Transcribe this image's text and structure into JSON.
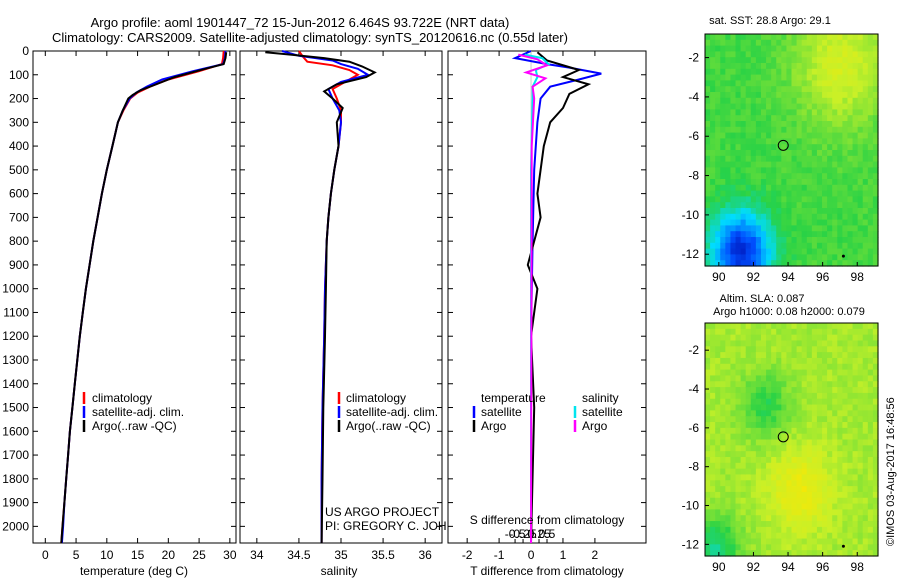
{
  "title_line1": "Argo profile: aoml 1901447_72 15-Jun-2012 6.464S 93.722E (NRT data)",
  "title_line2": "Climatology: CARS2009. Satellite-adjusted climatology: synTS_20120616.nc (0.55d later)",
  "side_stamp": "©IMOS 03-Aug-2017 16:48:56",
  "project_line1": "US ARGO PROJECT",
  "project_line2": "PI: GREGORY C. JOHNSON",
  "colors": {
    "climatology": "#ff0000",
    "satellite": "#0000ff",
    "argo": "#000000",
    "satellite_s": "#00e5ee",
    "argo_s": "#ff00ff"
  },
  "chart_data": [
    {
      "id": "temperature",
      "type": "line",
      "xlabel": "temperature (deg C)",
      "ylabel": "",
      "xlim": [
        -2,
        31
      ],
      "ylim": [
        2070,
        0
      ],
      "xticks": [
        0,
        5,
        10,
        15,
        20,
        25,
        30
      ],
      "yticks": [
        0,
        100,
        200,
        300,
        400,
        500,
        600,
        700,
        800,
        900,
        1000,
        1100,
        1200,
        1300,
        1400,
        1500,
        1600,
        1700,
        1800,
        1900,
        2000
      ],
      "legend": [
        "climatology",
        "satellite-adj. clim.",
        "Argo(..raw -QC)"
      ],
      "series": [
        {
          "name": "climatology",
          "color_key": "climatology",
          "points": [
            [
              29.0,
              0
            ],
            [
              28.9,
              30
            ],
            [
              28.7,
              55
            ],
            [
              25.0,
              85
            ],
            [
              20.0,
              120
            ],
            [
              17.0,
              150
            ],
            [
              15.0,
              175
            ],
            [
              13.8,
              200
            ],
            [
              12.7,
              250
            ],
            [
              11.8,
              300
            ],
            [
              10.9,
              400
            ],
            [
              10.0,
              500
            ],
            [
              9.2,
              600
            ],
            [
              8.5,
              700
            ],
            [
              7.8,
              800
            ],
            [
              7.2,
              900
            ],
            [
              6.6,
              1000
            ],
            [
              6.1,
              1100
            ],
            [
              5.6,
              1200
            ],
            [
              5.2,
              1300
            ],
            [
              4.8,
              1400
            ],
            [
              4.4,
              1500
            ],
            [
              4.0,
              1600
            ],
            [
              3.7,
              1700
            ],
            [
              3.4,
              1800
            ],
            [
              3.1,
              1900
            ],
            [
              2.8,
              2000
            ],
            [
              2.6,
              2070
            ]
          ]
        },
        {
          "name": "satellite-adj. clim.",
          "color_key": "satellite",
          "points": [
            [
              29.3,
              0
            ],
            [
              29.2,
              30
            ],
            [
              28.9,
              55
            ],
            [
              24.0,
              85
            ],
            [
              19.0,
              120
            ],
            [
              16.5,
              150
            ],
            [
              14.8,
              175
            ],
            [
              13.7,
              200
            ],
            [
              12.6,
              250
            ],
            [
              11.8,
              300
            ],
            [
              10.9,
              400
            ],
            [
              10.0,
              500
            ],
            [
              9.2,
              600
            ],
            [
              8.5,
              700
            ],
            [
              7.8,
              800
            ],
            [
              7.2,
              900
            ],
            [
              6.6,
              1000
            ],
            [
              6.1,
              1100
            ],
            [
              5.6,
              1200
            ],
            [
              5.2,
              1300
            ],
            [
              4.8,
              1400
            ],
            [
              4.4,
              1500
            ],
            [
              4.0,
              1600
            ],
            [
              3.7,
              1700
            ],
            [
              3.4,
              1800
            ],
            [
              3.1,
              1900
            ],
            [
              2.9,
              2000
            ],
            [
              2.7,
              2070
            ]
          ]
        },
        {
          "name": "Argo(..raw -QC)",
          "color_key": "argo",
          "points": [
            [
              29.4,
              5
            ],
            [
              29.3,
              30
            ],
            [
              29.0,
              55
            ],
            [
              26.0,
              75
            ],
            [
              21.0,
              110
            ],
            [
              17.5,
              145
            ],
            [
              15.5,
              165
            ],
            [
              14.2,
              185
            ],
            [
              13.5,
              200
            ],
            [
              12.6,
              250
            ],
            [
              11.8,
              300
            ],
            [
              10.9,
              400
            ],
            [
              10.0,
              500
            ],
            [
              9.2,
              600
            ],
            [
              8.5,
              700
            ],
            [
              7.8,
              800
            ],
            [
              7.2,
              900
            ],
            [
              6.6,
              1000
            ],
            [
              6.1,
              1100
            ],
            [
              5.6,
              1200
            ],
            [
              5.2,
              1300
            ],
            [
              4.8,
              1400
            ],
            [
              4.4,
              1500
            ],
            [
              4.0,
              1600
            ],
            [
              3.7,
              1700
            ],
            [
              3.4,
              1800
            ],
            [
              3.1,
              1900
            ],
            [
              2.8,
              2000
            ],
            [
              2.6,
              2070
            ]
          ]
        }
      ]
    },
    {
      "id": "salinity",
      "type": "line",
      "xlabel": "salinity",
      "xlim": [
        33.8,
        36.2
      ],
      "ylim": [
        2070,
        0
      ],
      "xticks": [
        34,
        34.5,
        35,
        35.5,
        36
      ],
      "xticklabels": [
        "34",
        "34.5",
        "35",
        "35.5",
        "36"
      ],
      "legend": [
        "climatology",
        "satellite-adj. clim.",
        "Argo(..raw -QC)"
      ],
      "series": [
        {
          "name": "climatology",
          "color_key": "climatology",
          "points": [
            [
              34.5,
              0
            ],
            [
              34.55,
              25
            ],
            [
              34.6,
              45
            ],
            [
              34.9,
              60
            ],
            [
              35.1,
              80
            ],
            [
              35.2,
              100
            ],
            [
              35.05,
              130
            ],
            [
              34.9,
              160
            ],
            [
              34.95,
              200
            ],
            [
              35.0,
              250
            ],
            [
              35.0,
              300
            ],
            [
              34.97,
              400
            ],
            [
              34.92,
              500
            ],
            [
              34.88,
              600
            ],
            [
              34.85,
              700
            ],
            [
              34.83,
              800
            ],
            [
              34.81,
              1000
            ],
            [
              34.8,
              1200
            ],
            [
              34.78,
              1500
            ],
            [
              34.77,
              1800
            ],
            [
              34.77,
              2070
            ]
          ]
        },
        {
          "name": "satellite-adj. clim.",
          "color_key": "satellite",
          "points": [
            [
              34.3,
              0
            ],
            [
              34.5,
              20
            ],
            [
              34.9,
              40
            ],
            [
              35.0,
              55
            ],
            [
              35.2,
              75
            ],
            [
              35.32,
              100
            ],
            [
              35.0,
              130
            ],
            [
              34.85,
              160
            ],
            [
              34.9,
              200
            ],
            [
              34.98,
              250
            ],
            [
              35.0,
              300
            ],
            [
              34.97,
              400
            ],
            [
              34.92,
              500
            ],
            [
              34.88,
              600
            ],
            [
              34.85,
              700
            ],
            [
              34.83,
              800
            ],
            [
              34.81,
              1000
            ],
            [
              34.8,
              1200
            ],
            [
              34.78,
              1500
            ],
            [
              34.77,
              1800
            ],
            [
              34.77,
              2070
            ]
          ]
        },
        {
          "name": "Argo(..raw -QC)",
          "color_key": "argo",
          "points": [
            [
              34.1,
              5
            ],
            [
              34.4,
              15
            ],
            [
              34.8,
              30
            ],
            [
              35.1,
              45
            ],
            [
              35.25,
              65
            ],
            [
              35.4,
              90
            ],
            [
              35.3,
              110
            ],
            [
              34.95,
              140
            ],
            [
              34.8,
              170
            ],
            [
              34.9,
              200
            ],
            [
              35.02,
              240
            ],
            [
              34.95,
              300
            ],
            [
              34.97,
              400
            ],
            [
              34.92,
              500
            ],
            [
              34.88,
              600
            ],
            [
              34.85,
              700
            ],
            [
              34.83,
              800
            ],
            [
              34.82,
              1000
            ],
            [
              34.81,
              1200
            ],
            [
              34.79,
              1500
            ],
            [
              34.78,
              1800
            ],
            [
              34.77,
              2070
            ]
          ]
        }
      ]
    },
    {
      "id": "difference",
      "type": "line",
      "xlabel": "T difference from climatology",
      "xlabel_top": "S difference from climatology",
      "xlim": [
        -2.6,
        3.6
      ],
      "ylim": [
        2070,
        0
      ],
      "xticks": [
        -2,
        -1,
        0,
        1,
        2
      ],
      "xticklabels": [
        "-2",
        "-1",
        "0",
        "1",
        "2"
      ],
      "sticks": [
        -0.5,
        -0.25,
        0,
        0.25,
        0.5
      ],
      "sticklabels": [
        "-0.5",
        "-0.25",
        "0",
        "0.25",
        "0.5"
      ],
      "legend_t_title": "temperature",
      "legend_s_title": "salinity",
      "legend_t": [
        "satellite",
        "Argo"
      ],
      "legend_s": [
        "satellite",
        "Argo"
      ],
      "series": [
        {
          "name": "T satellite",
          "color_key": "satellite",
          "points": [
            [
              0,
              0
            ],
            [
              -0.5,
              30
            ],
            [
              0.5,
              55
            ],
            [
              1.2,
              70
            ],
            [
              2.2,
              95
            ],
            [
              1.5,
              120
            ],
            [
              0.6,
              150
            ],
            [
              0.3,
              200
            ],
            [
              0.2,
              300
            ],
            [
              0.1,
              500
            ],
            [
              0.05,
              800
            ],
            [
              0.0,
              1200
            ],
            [
              0.0,
              2070
            ]
          ]
        },
        {
          "name": "T Argo",
          "color_key": "argo",
          "points": [
            [
              0.2,
              5
            ],
            [
              0.5,
              40
            ],
            [
              1.5,
              80
            ],
            [
              1.0,
              110
            ],
            [
              1.8,
              140
            ],
            [
              1.2,
              180
            ],
            [
              1.0,
              240
            ],
            [
              0.6,
              300
            ],
            [
              0.4,
              400
            ],
            [
              0.2,
              600
            ],
            [
              0.3,
              700
            ],
            [
              0.1,
              800
            ],
            [
              -0.1,
              900
            ],
            [
              0.2,
              1000
            ],
            [
              0.0,
              1200
            ],
            [
              0.1,
              1500
            ],
            [
              0.0,
              2070
            ]
          ]
        },
        {
          "name": "S satellite",
          "color_key": "satellite_s",
          "points": [
            [
              -0.2,
              15
            ],
            [
              0.35,
              30
            ],
            [
              0.55,
              55
            ],
            [
              0.15,
              80
            ],
            [
              0.2,
              110
            ],
            [
              0.05,
              150
            ],
            [
              0.05,
              200
            ],
            [
              0.0,
              500
            ],
            [
              0.0,
              2070
            ]
          ]
        },
        {
          "name": "S Argo",
          "color_key": "argo_s",
          "points": [
            [
              -0.4,
              15
            ],
            [
              0.2,
              35
            ],
            [
              0.5,
              60
            ],
            [
              -0.15,
              90
            ],
            [
              0.45,
              115
            ],
            [
              0.05,
              150
            ],
            [
              0.1,
              200
            ],
            [
              0.02,
              400
            ],
            [
              0.0,
              2070
            ]
          ]
        }
      ]
    },
    {
      "id": "sst_map",
      "type": "heatmap",
      "title": "sat. SST: 28.8 Argo: 29.1",
      "xticks": [
        90,
        92,
        94,
        96,
        98
      ],
      "yticks": [
        -2,
        -4,
        -6,
        -8,
        -10,
        -12
      ],
      "xlim": [
        89.2,
        99.2
      ],
      "ylim": [
        -12.6,
        -0.8
      ],
      "marker": [
        93.722,
        -6.464
      ]
    },
    {
      "id": "sla_map",
      "type": "heatmap",
      "title": "Altim. SLA: 0.087",
      "subtitle": "Argo h1000: 0.08 h2000: 0.079",
      "xticks": [
        90,
        92,
        94,
        96,
        98
      ],
      "yticks": [
        -2,
        -4,
        -6,
        -8,
        -10,
        -12
      ],
      "xlim": [
        89.2,
        99.2
      ],
      "ylim": [
        -12.6,
        -0.6
      ],
      "marker": [
        93.722,
        -6.464
      ]
    }
  ]
}
